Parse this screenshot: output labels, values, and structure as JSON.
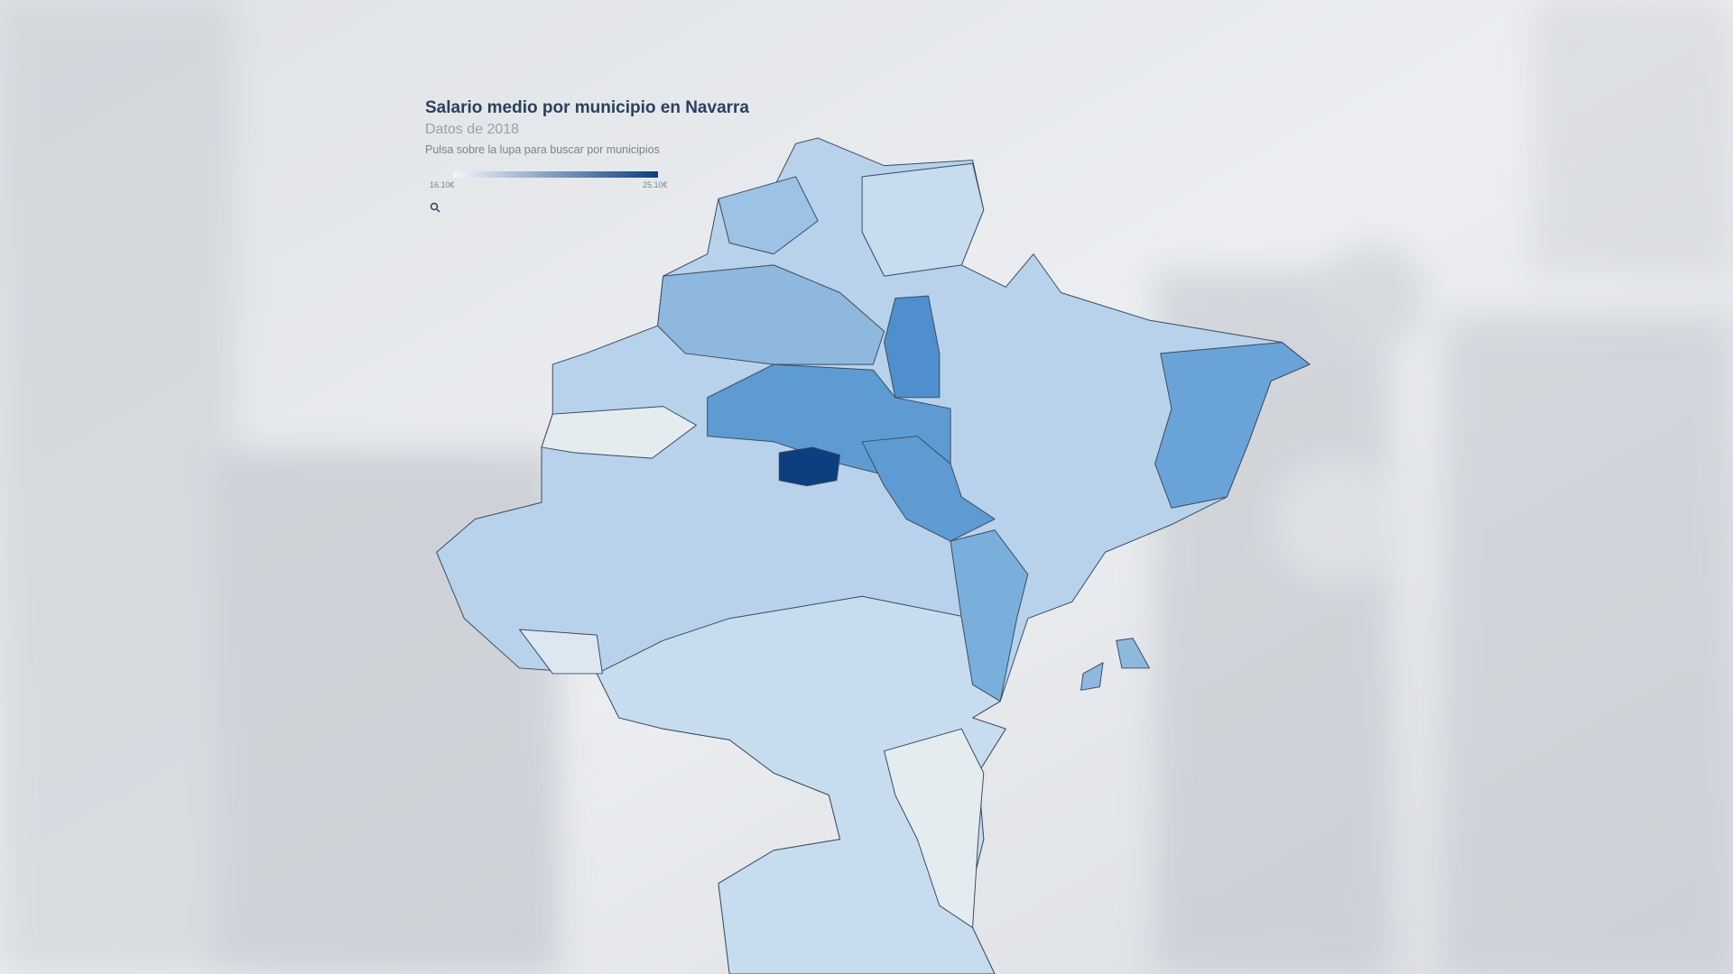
{
  "header": {
    "title": "Salario medio por municipio en Navarra",
    "subtitle": "Datos de 2018",
    "instruction": "Pulsa sobre la lupa para buscar por municipios"
  },
  "legend": {
    "min_label": "16.10€",
    "max_label": "25.10€"
  }
}
